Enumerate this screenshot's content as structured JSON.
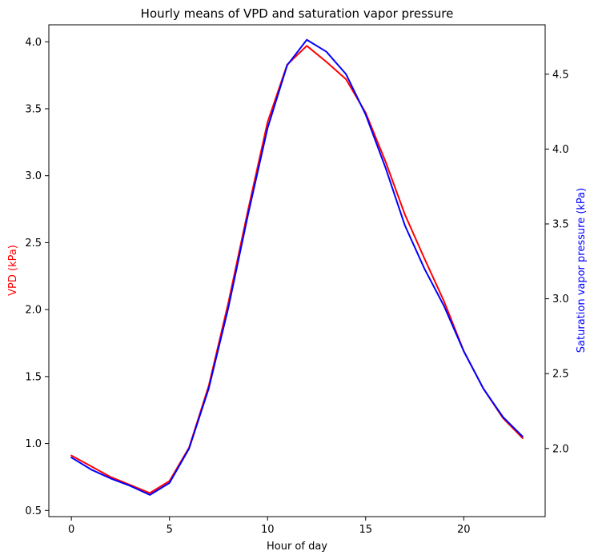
{
  "chart_data": {
    "type": "line",
    "title": "Hourly means of VPD and saturation vapor pressure",
    "xlabel": "Hour of day",
    "ylabel_left": "VPD (kPa)",
    "ylabel_right": "Saturation vapor pressure (kPa)",
    "xlim": [
      -1.15,
      24.15
    ],
    "ylim_left": [
      0.454,
      4.127
    ],
    "ylim_right": [
      1.545,
      4.83
    ],
    "xticks": [
      0,
      5,
      10,
      15,
      20
    ],
    "yticks_left": [
      0.5,
      1.0,
      1.5,
      2.0,
      2.5,
      3.0,
      3.5,
      4.0
    ],
    "yticks_right": [
      2.0,
      2.5,
      3.0,
      3.5,
      4.0,
      4.5
    ],
    "grid": false,
    "x": [
      0,
      1,
      2,
      3,
      4,
      5,
      6,
      7,
      8,
      9,
      10,
      11,
      12,
      13,
      14,
      15,
      16,
      17,
      18,
      19,
      20,
      21,
      22,
      23
    ],
    "series": [
      {
        "name": "VPD (kPa)",
        "axis": "left",
        "color": "#ff0000",
        "values": [
          0.91,
          0.83,
          0.75,
          0.69,
          0.63,
          0.72,
          0.97,
          1.43,
          2.05,
          2.74,
          3.4,
          3.83,
          3.97,
          3.85,
          3.72,
          3.47,
          3.11,
          2.71,
          2.38,
          2.06,
          1.69,
          1.41,
          1.19,
          1.04
        ]
      },
      {
        "name": "Saturation vapor pressure (kPa)",
        "axis": "right",
        "color": "#0000ff",
        "values": [
          1.94,
          1.86,
          1.8,
          1.75,
          1.69,
          1.77,
          2.0,
          2.4,
          2.94,
          3.56,
          4.14,
          4.56,
          4.73,
          4.65,
          4.5,
          4.23,
          3.88,
          3.49,
          3.2,
          2.95,
          2.65,
          2.4,
          2.21,
          2.08
        ]
      }
    ]
  }
}
